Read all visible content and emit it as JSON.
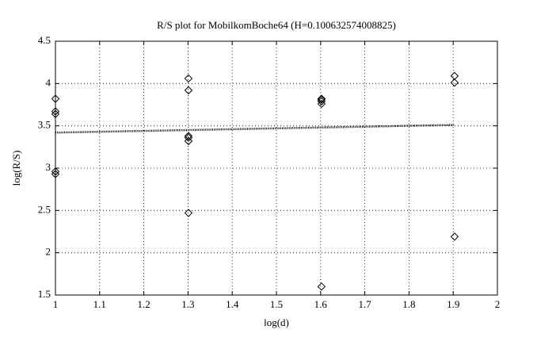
{
  "chart_data": {
    "type": "scatter",
    "title": "R/S plot for MobilkomBoche64 (H=0.100632574008825)",
    "x_label": "log(d)",
    "y_label": "log(R/S)",
    "xlim": [
      1,
      2
    ],
    "xticks": [
      1,
      1.1,
      1.2,
      1.3,
      1.4,
      1.5,
      1.6,
      1.7,
      1.8,
      1.9,
      2
    ],
    "ylim": [
      1.5,
      4.5
    ],
    "yticks": [
      1.5,
      2,
      2.5,
      3,
      3.5,
      4,
      4.5
    ],
    "grid": true,
    "series": [
      {
        "style": "diamond",
        "color": "#000000",
        "x": [
          1,
          1,
          1,
          1,
          1,
          1.301,
          1.301,
          1.301,
          1.301,
          1.301,
          1.301,
          1.602,
          1.602,
          1.602,
          1.602,
          1.602,
          1.903,
          1.903,
          1.903
        ],
        "values": [
          3.82,
          3.67,
          3.64,
          2.96,
          2.93,
          4.06,
          3.92,
          3.38,
          3.36,
          3.32,
          2.47,
          3.82,
          3.81,
          3.79,
          3.76,
          1.6,
          4.09,
          4.01,
          2.19
        ]
      },
      {
        "style": "dotted-line",
        "color": "#000000",
        "x": [
          1,
          1.903
        ],
        "values": [
          3.42,
          3.511
        ]
      }
    ]
  }
}
